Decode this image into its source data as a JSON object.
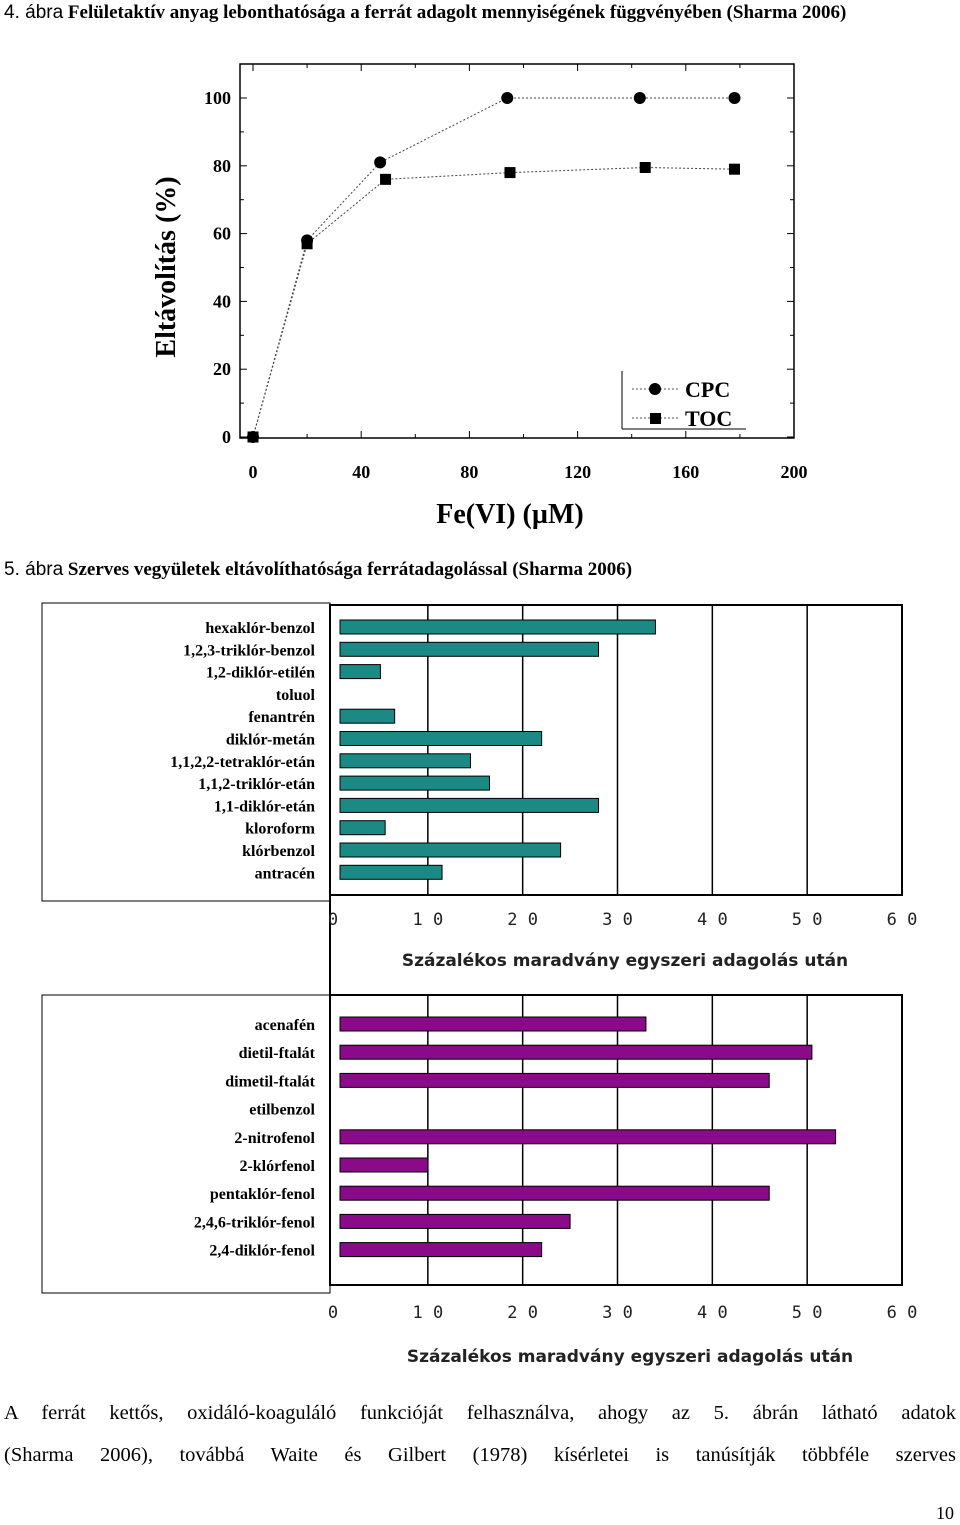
{
  "figure4": {
    "num": "4. ábra",
    "title": "Felületaktív anyag lebonthatósága a ferrát adagolt mennyiségének függvényében (Sharma 2006)"
  },
  "figure5": {
    "num": "5. ábra",
    "title": "Szerves vegyületek eltávolíthatósága ferrátadagolással (Sharma 2006)"
  },
  "paragraph": [
    "A ferrát kettős, oxidáló-koaguláló funkcióját felhasználva, ahogy az 5. ábrán látható adatok",
    "(Sharma 2006), továbbá Waite és Gilbert (1978) kísérletei is tanúsítják többféle szerves"
  ],
  "page_number": "10",
  "colors": {
    "teal": "#1b8a84",
    "purple": "#8a0a8a",
    "marker": "#000000"
  },
  "chart_data": [
    {
      "type": "line",
      "xlabel": "Fe(VI) (µM)",
      "ylabel": "Eltávolítás (%)",
      "xlim": [
        0,
        200
      ],
      "ylim": [
        0,
        100
      ],
      "xticks": [
        "0",
        "40",
        "80",
        "120",
        "160",
        "200"
      ],
      "yticks": [
        "0",
        "20",
        "40",
        "60",
        "80",
        "100"
      ],
      "legend_position": "bottom-right",
      "series": [
        {
          "name": "CPC",
          "marker": "circle",
          "x": [
            0,
            20,
            47,
            94,
            143,
            178
          ],
          "y": [
            0,
            58,
            81,
            100,
            100,
            100
          ]
        },
        {
          "name": "TOC",
          "marker": "square",
          "x": [
            0,
            20,
            49,
            95,
            145,
            178
          ],
          "y": [
            0,
            57,
            76,
            78,
            79.5,
            79
          ]
        }
      ]
    },
    {
      "type": "bar",
      "orientation": "horizontal",
      "xlabel": "Százalékos maradvány egyszeri adagolás után",
      "xlim": [
        0,
        60
      ],
      "xticks": [
        "0",
        "10",
        "20",
        "30",
        "40",
        "50",
        "60"
      ],
      "categories": [
        "hexaklór-benzol",
        "1,2,3-triklór-benzol",
        "1,2-diklór-etilén",
        "toluol",
        "fenantrén",
        "diklór-metán",
        "1,1,2,2-tetraklór-etán",
        "1,1,2-triklór-etán",
        "1,1-diklór-etán",
        "kloroform",
        "klórbenzol",
        "antracén"
      ],
      "values": [
        34,
        28,
        5,
        0,
        6.5,
        22,
        14.5,
        16.5,
        28,
        5.5,
        24,
        11.5
      ]
    },
    {
      "type": "bar",
      "orientation": "horizontal",
      "xlabel": "Százalékos maradvány egyszeri adagolás után",
      "xlim": [
        0,
        60
      ],
      "xticks": [
        "0",
        "10",
        "20",
        "30",
        "40",
        "50",
        "60"
      ],
      "categories": [
        "acenafén",
        "dietil-ftalát",
        "dimetil-ftalát",
        "etilbenzol",
        "2-nitrofenol",
        "2-klórfenol",
        "pentaklór-fenol",
        "2,4,6-triklór-fenol",
        "2,4-diklór-fenol"
      ],
      "values": [
        33,
        50.5,
        46,
        0,
        53,
        10,
        46,
        25,
        22
      ]
    }
  ]
}
